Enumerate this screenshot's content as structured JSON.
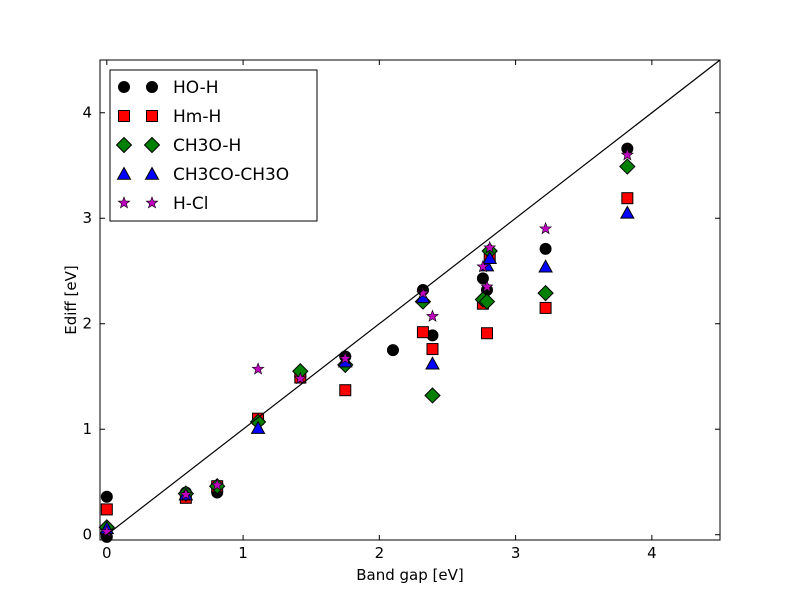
{
  "chart_data": {
    "type": "scatter",
    "xlabel": "Band gap [eV]",
    "ylabel": "Ediff [eV]",
    "xlim": [
      -0.05,
      4.5
    ],
    "ylim": [
      -0.05,
      4.5
    ],
    "xticks": [
      0,
      1,
      2,
      3,
      4
    ],
    "yticks": [
      0,
      1,
      2,
      3,
      4
    ],
    "reference_line": {
      "x": [
        0,
        4.5
      ],
      "y": [
        0,
        4.5
      ]
    },
    "legend_position": "upper-left",
    "series": [
      {
        "name": "HO-H",
        "marker": "circle",
        "color": "#000000",
        "x": [
          0.0,
          0.0,
          0.58,
          0.81,
          1.11,
          1.42,
          1.75,
          2.1,
          2.32,
          2.39,
          2.76,
          2.79,
          3.22,
          3.82
        ],
        "y": [
          0.36,
          -0.02,
          0.4,
          0.4,
          1.08,
          1.5,
          1.69,
          1.75,
          2.32,
          1.89,
          2.43,
          2.32,
          2.71,
          3.66
        ]
      },
      {
        "name": "Hm-H",
        "marker": "square",
        "color": "#ff0000",
        "x": [
          0.0,
          0.58,
          0.81,
          1.11,
          1.42,
          1.75,
          2.32,
          2.39,
          2.76,
          2.79,
          2.81,
          3.22,
          3.82
        ],
        "y": [
          0.24,
          0.35,
          0.46,
          1.1,
          1.49,
          1.37,
          1.92,
          1.76,
          2.19,
          1.91,
          2.64,
          2.15,
          3.19
        ]
      },
      {
        "name": "CH3O-H",
        "marker": "diamond",
        "color": "#008000",
        "x": [
          0.0,
          0.58,
          0.81,
          1.11,
          1.42,
          1.75,
          2.32,
          2.39,
          2.76,
          2.79,
          2.81,
          3.22,
          3.82
        ],
        "y": [
          0.07,
          0.39,
          0.46,
          1.07,
          1.55,
          1.61,
          2.21,
          1.32,
          2.23,
          2.21,
          2.69,
          2.29,
          3.49
        ]
      },
      {
        "name": "CH3CO-CH3O",
        "marker": "triangle",
        "color": "#0000ff",
        "x": [
          0.0,
          0.58,
          1.11,
          1.75,
          2.32,
          2.39,
          2.79,
          2.81,
          3.22,
          3.82
        ],
        "y": [
          0.06,
          0.38,
          1.01,
          1.64,
          2.25,
          1.62,
          2.55,
          2.62,
          2.54,
          3.05
        ]
      },
      {
        "name": "H-Cl",
        "marker": "star",
        "color": "#bf00bf",
        "x": [
          0.0,
          0.58,
          0.81,
          1.11,
          1.42,
          1.75,
          2.32,
          2.39,
          2.76,
          2.79,
          2.81,
          3.22,
          3.82
        ],
        "y": [
          0.03,
          0.38,
          0.47,
          1.57,
          1.48,
          1.67,
          2.29,
          2.07,
          2.54,
          2.35,
          2.72,
          2.9,
          3.6
        ]
      }
    ]
  }
}
